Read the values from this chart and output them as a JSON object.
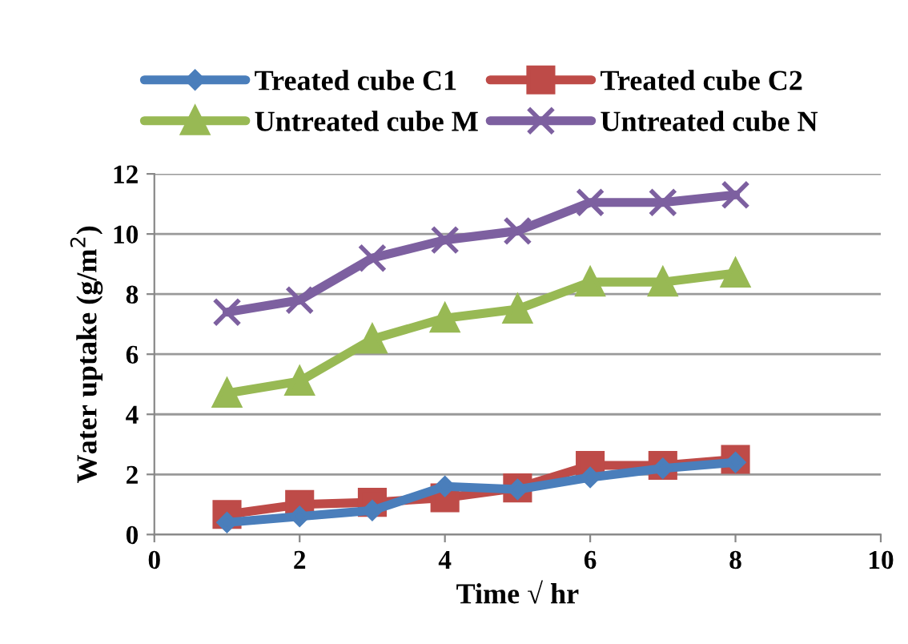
{
  "chart_data": {
    "type": "line",
    "xlabel": "Time √ hr",
    "ylabel": "Water uptake (g/m$^{2}$)",
    "x": [
      1,
      2,
      3,
      4,
      5,
      6,
      7,
      8
    ],
    "series": [
      {
        "name": "Treated cube C1",
        "color": "#4a7ebb",
        "marker": "diamond",
        "values": [
          0.4,
          0.6,
          0.8,
          1.6,
          1.5,
          1.9,
          2.2,
          2.4
        ]
      },
      {
        "name": "Treated cube C2",
        "color": "#be4b48",
        "marker": "square",
        "values": [
          0.67,
          1.0,
          1.07,
          1.22,
          1.55,
          2.3,
          2.3,
          2.5
        ]
      },
      {
        "name": "Untreated cube M",
        "color": "#98b954",
        "marker": "triangle",
        "values": [
          4.7,
          5.1,
          6.5,
          7.2,
          7.5,
          8.4,
          8.4,
          8.7
        ]
      },
      {
        "name": "Untreated cube N",
        "color": "#7d60a0",
        "marker": "cross",
        "values": [
          7.4,
          7.8,
          9.2,
          9.8,
          10.1,
          11.05,
          11.05,
          11.3
        ]
      }
    ],
    "xlim": [
      0,
      10
    ],
    "xticks": [
      0,
      2,
      4,
      6,
      8,
      10
    ],
    "ylim": [
      0,
      12
    ],
    "yticks": [
      0,
      2,
      4,
      6,
      8,
      10,
      12
    ],
    "grid": "y",
    "legend": "top",
    "line_style": "solid"
  }
}
